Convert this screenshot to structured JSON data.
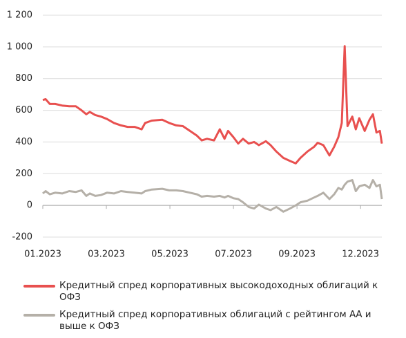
{
  "chart_data": {
    "type": "line",
    "x": [
      0,
      0.09,
      0.22,
      0.39,
      0.61,
      0.83,
      1.04,
      1.22,
      1.37,
      1.48,
      1.65,
      1.83,
      2.02,
      2.24,
      2.46,
      2.67,
      2.89,
      3.11,
      3.22,
      3.43,
      3.76,
      3.98,
      4.2,
      4.41,
      4.63,
      4.85,
      5,
      5.17,
      5.39,
      5.57,
      5.72,
      5.83,
      6,
      6.15,
      6.3,
      6.48,
      6.65,
      6.8,
      7.02,
      7.17,
      7.35,
      7.57,
      7.78,
      7.96,
      8.11,
      8.33,
      8.54,
      8.65,
      8.83,
      9.02,
      9.17,
      9.3,
      9.41,
      9.5,
      9.59,
      9.74,
      9.85,
      9.96,
      10.13,
      10.28,
      10.39,
      10.5,
      10.61,
      10.67
    ],
    "series": [
      {
        "name": "Кредитный спред корпоративных высокодоходных облигаций к ОФЗ",
        "color": "#e8504f",
        "values": [
          665,
          670,
          640,
          640,
          630,
          625,
          625,
          600,
          575,
          590,
          570,
          560,
          545,
          520,
          505,
          495,
          495,
          480,
          520,
          535,
          540,
          520,
          505,
          500,
          470,
          440,
          410,
          420,
          410,
          480,
          420,
          470,
          430,
          390,
          420,
          390,
          400,
          380,
          405,
          380,
          340,
          300,
          280,
          265,
          300,
          340,
          370,
          395,
          380,
          315,
          370,
          430,
          520,
          1005,
          500,
          560,
          480,
          550,
          470,
          540,
          575,
          460,
          470,
          390
        ]
      },
      {
        "name": "Кредитный спред корпоративных облигаций с рейтингом АА и выше к ОФЗ",
        "color": "#b5b0a8",
        "values": [
          75,
          90,
          70,
          80,
          75,
          90,
          85,
          95,
          60,
          75,
          60,
          65,
          80,
          75,
          90,
          85,
          80,
          75,
          90,
          100,
          105,
          95,
          95,
          90,
          80,
          70,
          55,
          60,
          55,
          60,
          50,
          60,
          45,
          40,
          20,
          -10,
          -20,
          5,
          -20,
          -30,
          -10,
          -40,
          -20,
          0,
          20,
          30,
          50,
          60,
          80,
          40,
          70,
          110,
          100,
          130,
          150,
          160,
          90,
          120,
          130,
          110,
          160,
          120,
          130,
          40
        ]
      }
    ],
    "xlim": [
      0,
      10.67
    ],
    "xticks": [
      {
        "value": 0,
        "label": "01.2023"
      },
      {
        "value": 2,
        "label": "03.2023"
      },
      {
        "value": 4,
        "label": "05.2023"
      },
      {
        "value": 6,
        "label": "07.2023"
      },
      {
        "value": 8,
        "label": "09.2023"
      },
      {
        "value": 10,
        "label": "12.2023"
      }
    ],
    "ylim": [
      -200,
      1200
    ],
    "yticks": [
      -200,
      0,
      200,
      400,
      600,
      800,
      {
        "value": 1000,
        "label": "1 000"
      },
      {
        "value": 1200,
        "label": "1 200"
      }
    ],
    "grid": true
  }
}
